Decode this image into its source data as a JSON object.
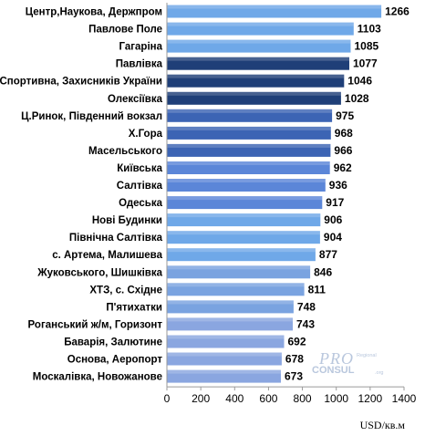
{
  "chart_data": {
    "type": "bar",
    "orientation": "horizontal",
    "categories": [
      "Центр,Наукова,  Держпром",
      "Павлове Поле",
      "Гагаріна",
      "Павлівка",
      "Спортивна, Захисників  України",
      "Олексіївка",
      "Ц.Ринок, Південний вокзал",
      "Х.Гора",
      "Масельського",
      "Київська",
      "Салтівка",
      "Одеська",
      "Нові Будинки",
      "Північна Салтівка",
      "с. Артема, Малишева",
      "Жуковського,  Шишківка",
      "ХТЗ, с. Східне",
      "П'ятихатки",
      "Роганський ж/м, Горизонт",
      "Баварія, Залютине",
      "Основа, Аеропорт",
      "Москалівка,  Новожанове"
    ],
    "values": [
      1266,
      1103,
      1085,
      1077,
      1046,
      1028,
      975,
      968,
      966,
      962,
      936,
      917,
      906,
      904,
      877,
      846,
      811,
      748,
      743,
      692,
      678,
      673
    ],
    "colors": [
      "#6fa8e8",
      "#6fa8e8",
      "#6fa8e8",
      "#1f3f78",
      "#1f3f78",
      "#1f3f78",
      "#3c64b4",
      "#3c64b4",
      "#3c64b4",
      "#5b86d8",
      "#5b86d8",
      "#5b86d8",
      "#6fa8e8",
      "#6fa8e8",
      "#6fa8e8",
      "#7aa3e0",
      "#7aa3e0",
      "#7aa3e0",
      "#8aa6e0",
      "#8aa6e0",
      "#8aa6e0",
      "#8aa6e0"
    ],
    "xlim": [
      0,
      1400
    ],
    "xticks": [
      0,
      200,
      400,
      600,
      800,
      1000,
      1200,
      1400
    ],
    "xlabel": "USD/кв.м",
    "title": "",
    "grid": false
  },
  "watermark": {
    "line1": "PRO",
    "line2": "CONSUL",
    "small": "Regional",
    "small2": ".org"
  }
}
